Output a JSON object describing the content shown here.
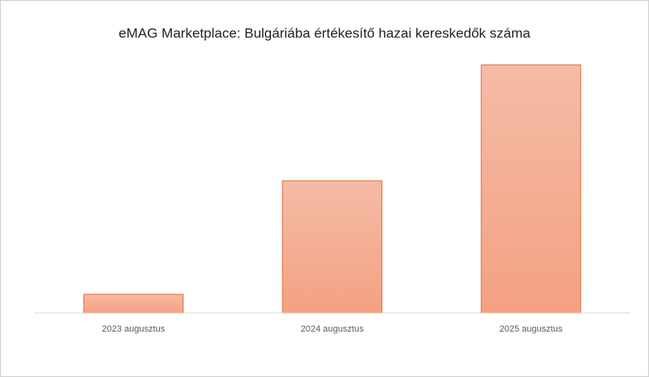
{
  "chart_data": {
    "type": "bar",
    "title": "eMAG Marketplace: Bulgáriába értékesítő hazai kereskedők száma",
    "categories": [
      "2023 augusztus",
      "2024 augusztus",
      "2025 augusztus"
    ],
    "values": [
      23,
      163,
      306
    ],
    "color": "#f4a98c",
    "ylim": [
      0,
      326
    ]
  }
}
